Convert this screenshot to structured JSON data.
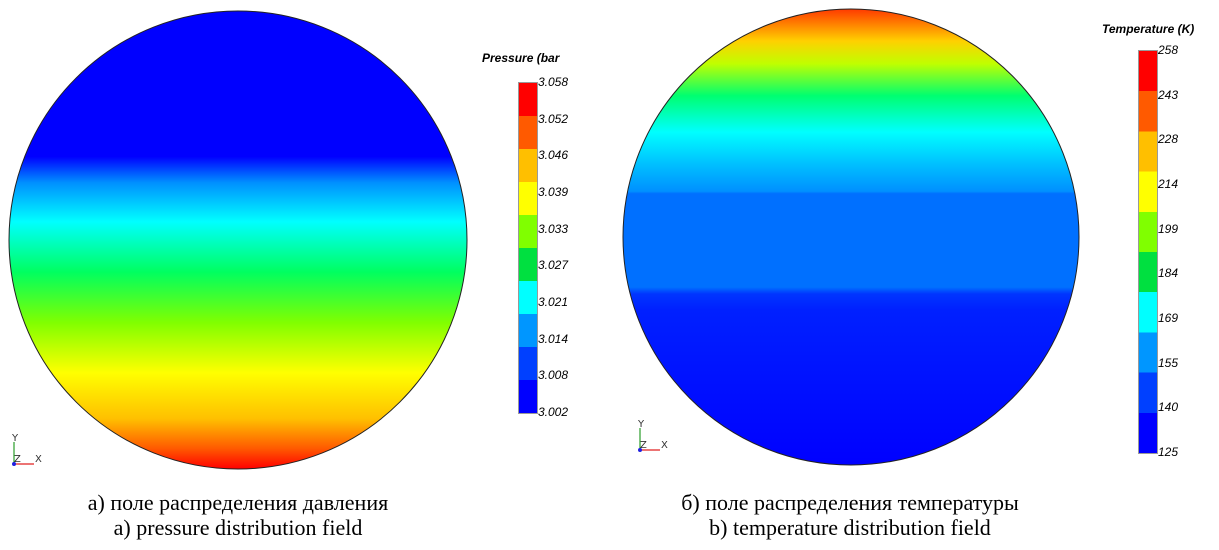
{
  "panel_a": {
    "legend_title": "Pressure (bar",
    "ticks": [
      "3.058",
      "3.052",
      "3.046",
      "3.039",
      "3.033",
      "3.027",
      "3.021",
      "3.014",
      "3.008",
      "3.002"
    ],
    "caption_ru": "а) поле распределения давления",
    "caption_en": "a) pressure distribution field",
    "axes": {
      "y": "Y",
      "z": "Z",
      "x": "X"
    },
    "colormap_top_to_bottom": [
      "#ff0000",
      "#ff5a00",
      "#ffbf00",
      "#ffff00",
      "#80ff00",
      "#00e040",
      "#00ffff",
      "#0096ff",
      "#0040ff",
      "#0000ff"
    ]
  },
  "panel_b": {
    "legend_title": "Temperature (K)",
    "ticks": [
      "258",
      "243",
      "228",
      "214",
      "199",
      "184",
      "169",
      "155",
      "140",
      "125"
    ],
    "caption_ru": "б) поле распределения температуры",
    "caption_en": "b) temperature distribution field",
    "axes": {
      "y": "Y",
      "z": "Z",
      "x": "X"
    },
    "colormap_top_to_bottom": [
      "#ff0000",
      "#ff5a00",
      "#ffbf00",
      "#ffff00",
      "#80ff00",
      "#00e040",
      "#00ffff",
      "#0096ff",
      "#0040ff",
      "#0000ff"
    ]
  },
  "chart_data": [
    {
      "type": "heatmap",
      "title": "Pressure (bar",
      "colorbar_ticks": [
        3.058,
        3.052,
        3.046,
        3.039,
        3.033,
        3.027,
        3.021,
        3.014,
        3.008,
        3.002
      ],
      "colorbar_range": [
        3.002,
        3.058
      ],
      "field_top_to_bottom": [
        "blue (~3.002)",
        "cyan (~3.018)",
        "green (~3.030)",
        "yellow (~3.045)",
        "red (~3.058)"
      ]
    },
    {
      "type": "heatmap",
      "title": "Temperature (K)",
      "colorbar_ticks": [
        258,
        243,
        228,
        214,
        199,
        184,
        169,
        155,
        140,
        125
      ],
      "colorbar_range": [
        125,
        258
      ],
      "field_top_to_bottom": [
        "red/orange (~258)",
        "yellow (~228)",
        "green (~200)",
        "cyan (~165)",
        "light blue (~145)",
        "blue (~125)"
      ]
    }
  ]
}
